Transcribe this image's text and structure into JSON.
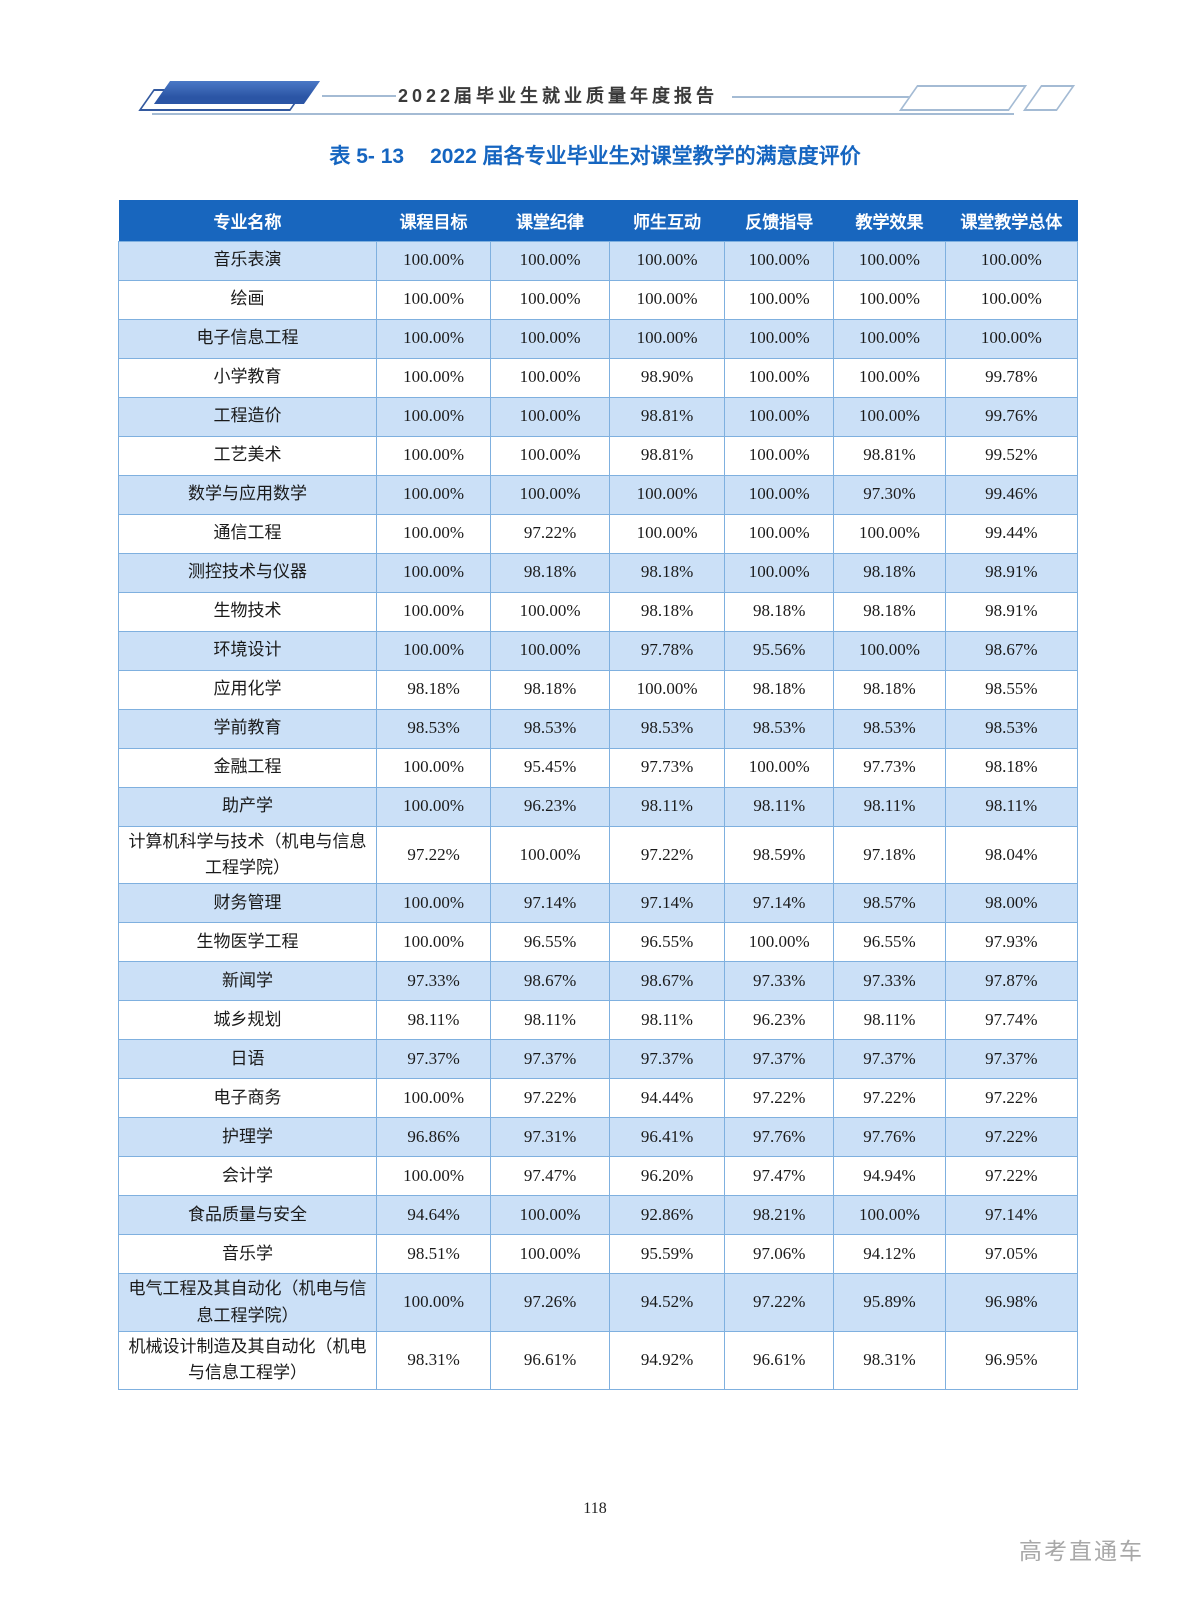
{
  "banner": {
    "report_title": "2022届毕业生就业质量年度报告"
  },
  "caption": {
    "label": "表 5- 13",
    "title": "2022 届各专业毕业生对课堂教学的满意度评价"
  },
  "footer": {
    "page_number": "118",
    "watermark": "高考直通车"
  },
  "colors": {
    "table_header_bg": "#1866BE",
    "row_alternate": "#CBE0F7",
    "table_border": "#7FB0DF",
    "caption_blue": "#1565C0",
    "banner_shape_blue": "#2E59A8"
  },
  "chart_data": {
    "type": "table",
    "columns": [
      "专业名称",
      "课程目标",
      "课堂纪律",
      "师生互动",
      "反馈指导",
      "教学效果",
      "课堂教学总体"
    ],
    "rows": [
      {
        "major": "音乐表演",
        "values": [
          "100.00%",
          "100.00%",
          "100.00%",
          "100.00%",
          "100.00%",
          "100.00%"
        ]
      },
      {
        "major": "绘画",
        "values": [
          "100.00%",
          "100.00%",
          "100.00%",
          "100.00%",
          "100.00%",
          "100.00%"
        ]
      },
      {
        "major": "电子信息工程",
        "values": [
          "100.00%",
          "100.00%",
          "100.00%",
          "100.00%",
          "100.00%",
          "100.00%"
        ]
      },
      {
        "major": "小学教育",
        "values": [
          "100.00%",
          "100.00%",
          "98.90%",
          "100.00%",
          "100.00%",
          "99.78%"
        ]
      },
      {
        "major": "工程造价",
        "values": [
          "100.00%",
          "100.00%",
          "98.81%",
          "100.00%",
          "100.00%",
          "99.76%"
        ]
      },
      {
        "major": "工艺美术",
        "values": [
          "100.00%",
          "100.00%",
          "98.81%",
          "100.00%",
          "98.81%",
          "99.52%"
        ]
      },
      {
        "major": "数学与应用数学",
        "values": [
          "100.00%",
          "100.00%",
          "100.00%",
          "100.00%",
          "97.30%",
          "99.46%"
        ]
      },
      {
        "major": "通信工程",
        "values": [
          "100.00%",
          "97.22%",
          "100.00%",
          "100.00%",
          "100.00%",
          "99.44%"
        ]
      },
      {
        "major": "测控技术与仪器",
        "values": [
          "100.00%",
          "98.18%",
          "98.18%",
          "100.00%",
          "98.18%",
          "98.91%"
        ]
      },
      {
        "major": "生物技术",
        "values": [
          "100.00%",
          "100.00%",
          "98.18%",
          "98.18%",
          "98.18%",
          "98.91%"
        ]
      },
      {
        "major": "环境设计",
        "values": [
          "100.00%",
          "100.00%",
          "97.78%",
          "95.56%",
          "100.00%",
          "98.67%"
        ]
      },
      {
        "major": "应用化学",
        "values": [
          "98.18%",
          "98.18%",
          "100.00%",
          "98.18%",
          "98.18%",
          "98.55%"
        ]
      },
      {
        "major": "学前教育",
        "values": [
          "98.53%",
          "98.53%",
          "98.53%",
          "98.53%",
          "98.53%",
          "98.53%"
        ]
      },
      {
        "major": "金融工程",
        "values": [
          "100.00%",
          "95.45%",
          "97.73%",
          "100.00%",
          "97.73%",
          "98.18%"
        ]
      },
      {
        "major": "助产学",
        "values": [
          "100.00%",
          "96.23%",
          "98.11%",
          "98.11%",
          "98.11%",
          "98.11%"
        ]
      },
      {
        "major": "计算机科学与技术（机电与信息工程学院）",
        "values": [
          "97.22%",
          "100.00%",
          "97.22%",
          "98.59%",
          "97.18%",
          "98.04%"
        ]
      },
      {
        "major": "财务管理",
        "values": [
          "100.00%",
          "97.14%",
          "97.14%",
          "97.14%",
          "98.57%",
          "98.00%"
        ]
      },
      {
        "major": "生物医学工程",
        "values": [
          "100.00%",
          "96.55%",
          "96.55%",
          "100.00%",
          "96.55%",
          "97.93%"
        ]
      },
      {
        "major": "新闻学",
        "values": [
          "97.33%",
          "98.67%",
          "98.67%",
          "97.33%",
          "97.33%",
          "97.87%"
        ]
      },
      {
        "major": "城乡规划",
        "values": [
          "98.11%",
          "98.11%",
          "98.11%",
          "96.23%",
          "98.11%",
          "97.74%"
        ]
      },
      {
        "major": "日语",
        "values": [
          "97.37%",
          "97.37%",
          "97.37%",
          "97.37%",
          "97.37%",
          "97.37%"
        ]
      },
      {
        "major": "电子商务",
        "values": [
          "100.00%",
          "97.22%",
          "94.44%",
          "97.22%",
          "97.22%",
          "97.22%"
        ]
      },
      {
        "major": "护理学",
        "values": [
          "96.86%",
          "97.31%",
          "96.41%",
          "97.76%",
          "97.76%",
          "97.22%"
        ]
      },
      {
        "major": "会计学",
        "values": [
          "100.00%",
          "97.47%",
          "96.20%",
          "97.47%",
          "94.94%",
          "97.22%"
        ]
      },
      {
        "major": "食品质量与安全",
        "values": [
          "94.64%",
          "100.00%",
          "92.86%",
          "98.21%",
          "100.00%",
          "97.14%"
        ]
      },
      {
        "major": "音乐学",
        "values": [
          "98.51%",
          "100.00%",
          "95.59%",
          "97.06%",
          "94.12%",
          "97.05%"
        ]
      },
      {
        "major": "电气工程及其自动化（机电与信息工程学院）",
        "values": [
          "100.00%",
          "97.26%",
          "94.52%",
          "97.22%",
          "95.89%",
          "96.98%"
        ]
      },
      {
        "major": "机械设计制造及其自动化（机电与信息工程学）",
        "values": [
          "98.31%",
          "96.61%",
          "94.92%",
          "96.61%",
          "98.31%",
          "96.95%"
        ]
      }
    ]
  }
}
